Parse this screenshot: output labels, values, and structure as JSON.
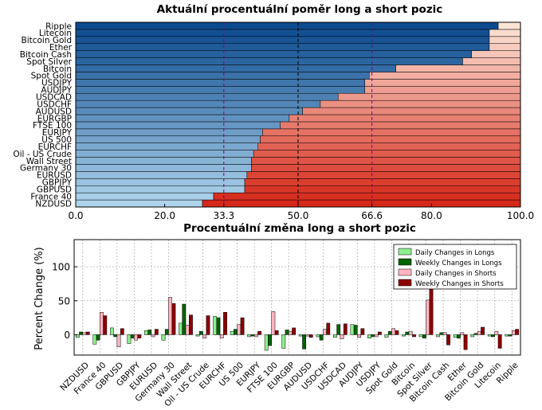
{
  "chart_data": [
    {
      "type": "bar",
      "orientation": "horizontal-stacked",
      "title": "Aktuální procentuální poměr long a short pozic",
      "categories": [
        "NZDUSD",
        "France 40",
        "GBPUSD",
        "GBPJPY",
        "EURUSD",
        "Germany 30",
        "Wall Street",
        "Oil - US Crude",
        "EURCHF",
        "US 500",
        "EURJPY",
        "FTSE 100",
        "EURGBP",
        "AUDUSD",
        "USDCHF",
        "USDCAD",
        "AUDJPY",
        "USDJPY",
        "Spot Gold",
        "Bitcoin",
        "Spot Silver",
        "Bitcoin Cash",
        "Ether",
        "Bitcoin Gold",
        "Litecoin",
        "Ripple"
      ],
      "long_values": [
        28.5,
        31,
        38,
        38,
        38.5,
        39.5,
        39.5,
        40,
        41,
        41.5,
        42,
        46,
        48,
        51,
        55,
        59,
        65,
        65,
        66,
        72,
        87,
        89,
        93,
        93,
        93,
        95
      ],
      "xlim": [
        0,
        100
      ],
      "xticks": [
        0.0,
        20.0,
        33.3,
        50.0,
        66.6,
        80.0,
        100.0
      ],
      "xtick_labels": [
        "0.0",
        "20.0",
        "33.3",
        "50.0",
        "66.6",
        "80.0",
        "100.0"
      ],
      "reference_lines": [
        33.3,
        50.0,
        66.6
      ],
      "colors": {
        "highlight_ticks": "#800080",
        "reference_line": "#800080",
        "center_line": "#000000"
      }
    },
    {
      "type": "bar",
      "title": "Procentuální změna long a short pozic",
      "ylabel": "Percent Change (%)",
      "categories": [
        "NZDUSD",
        "France 40",
        "GBPUSD",
        "GBPJPY",
        "EURUSD",
        "Germany 30",
        "Wall Street",
        "Oil - US Crude",
        "EURCHF",
        "US 500",
        "EURJPY",
        "FTSE 100",
        "EURGBP",
        "AUDUSD",
        "USDCHF",
        "USDCAD",
        "AUDJPY",
        "USDJPY",
        "Spot Gold",
        "Bitcoin",
        "Spot Silver",
        "Bitcoin Cash",
        "Ether",
        "Bitcoin Gold",
        "Litecoin",
        "Ripple"
      ],
      "ylim": [
        -30,
        140
      ],
      "yticks": [
        0,
        50,
        100
      ],
      "grid": true,
      "legend_position": "top-right",
      "series": [
        {
          "name": "Daily Changes in Longs",
          "color": "#90ee90",
          "values": [
            -4,
            -14,
            10,
            -13,
            6,
            -8,
            17,
            -2,
            27,
            5,
            -3,
            -23,
            -20,
            -2,
            -3,
            -4,
            15,
            -5,
            -4,
            -2,
            -3,
            -3,
            -4,
            -3,
            -2,
            -2
          ]
        },
        {
          "name": "Weekly Changes in Longs",
          "color": "#006400",
          "values": [
            4,
            -8,
            -3,
            -5,
            7,
            8,
            45,
            5,
            25,
            8,
            -2,
            -16,
            7,
            -21,
            -8,
            15,
            14,
            -3,
            5,
            4,
            -5,
            3,
            -5,
            2,
            -3,
            -2
          ]
        },
        {
          "name": "Daily Changes in Shorts",
          "color": "#ffb6c1",
          "values": [
            3,
            33,
            -18,
            -8,
            -3,
            55,
            14,
            -5,
            -5,
            15,
            -3,
            34,
            5,
            -2,
            8,
            -6,
            -4,
            -3,
            9,
            5,
            51,
            3,
            3,
            5,
            5,
            6
          ]
        },
        {
          "name": "Weekly Changes in Shorts",
          "color": "#8b0000",
          "values": [
            4,
            28,
            9,
            -5,
            8,
            46,
            29,
            28,
            33,
            25,
            5,
            6,
            10,
            -4,
            17,
            16,
            9,
            4,
            6,
            -3,
            68,
            -15,
            -22,
            11,
            -20,
            8
          ]
        }
      ],
      "legend_entries": [
        "Daily Changes in Longs",
        "Weekly Changes in Longs",
        "Daily Changes in Shorts",
        "Weekly Changes in Shorts"
      ]
    }
  ]
}
